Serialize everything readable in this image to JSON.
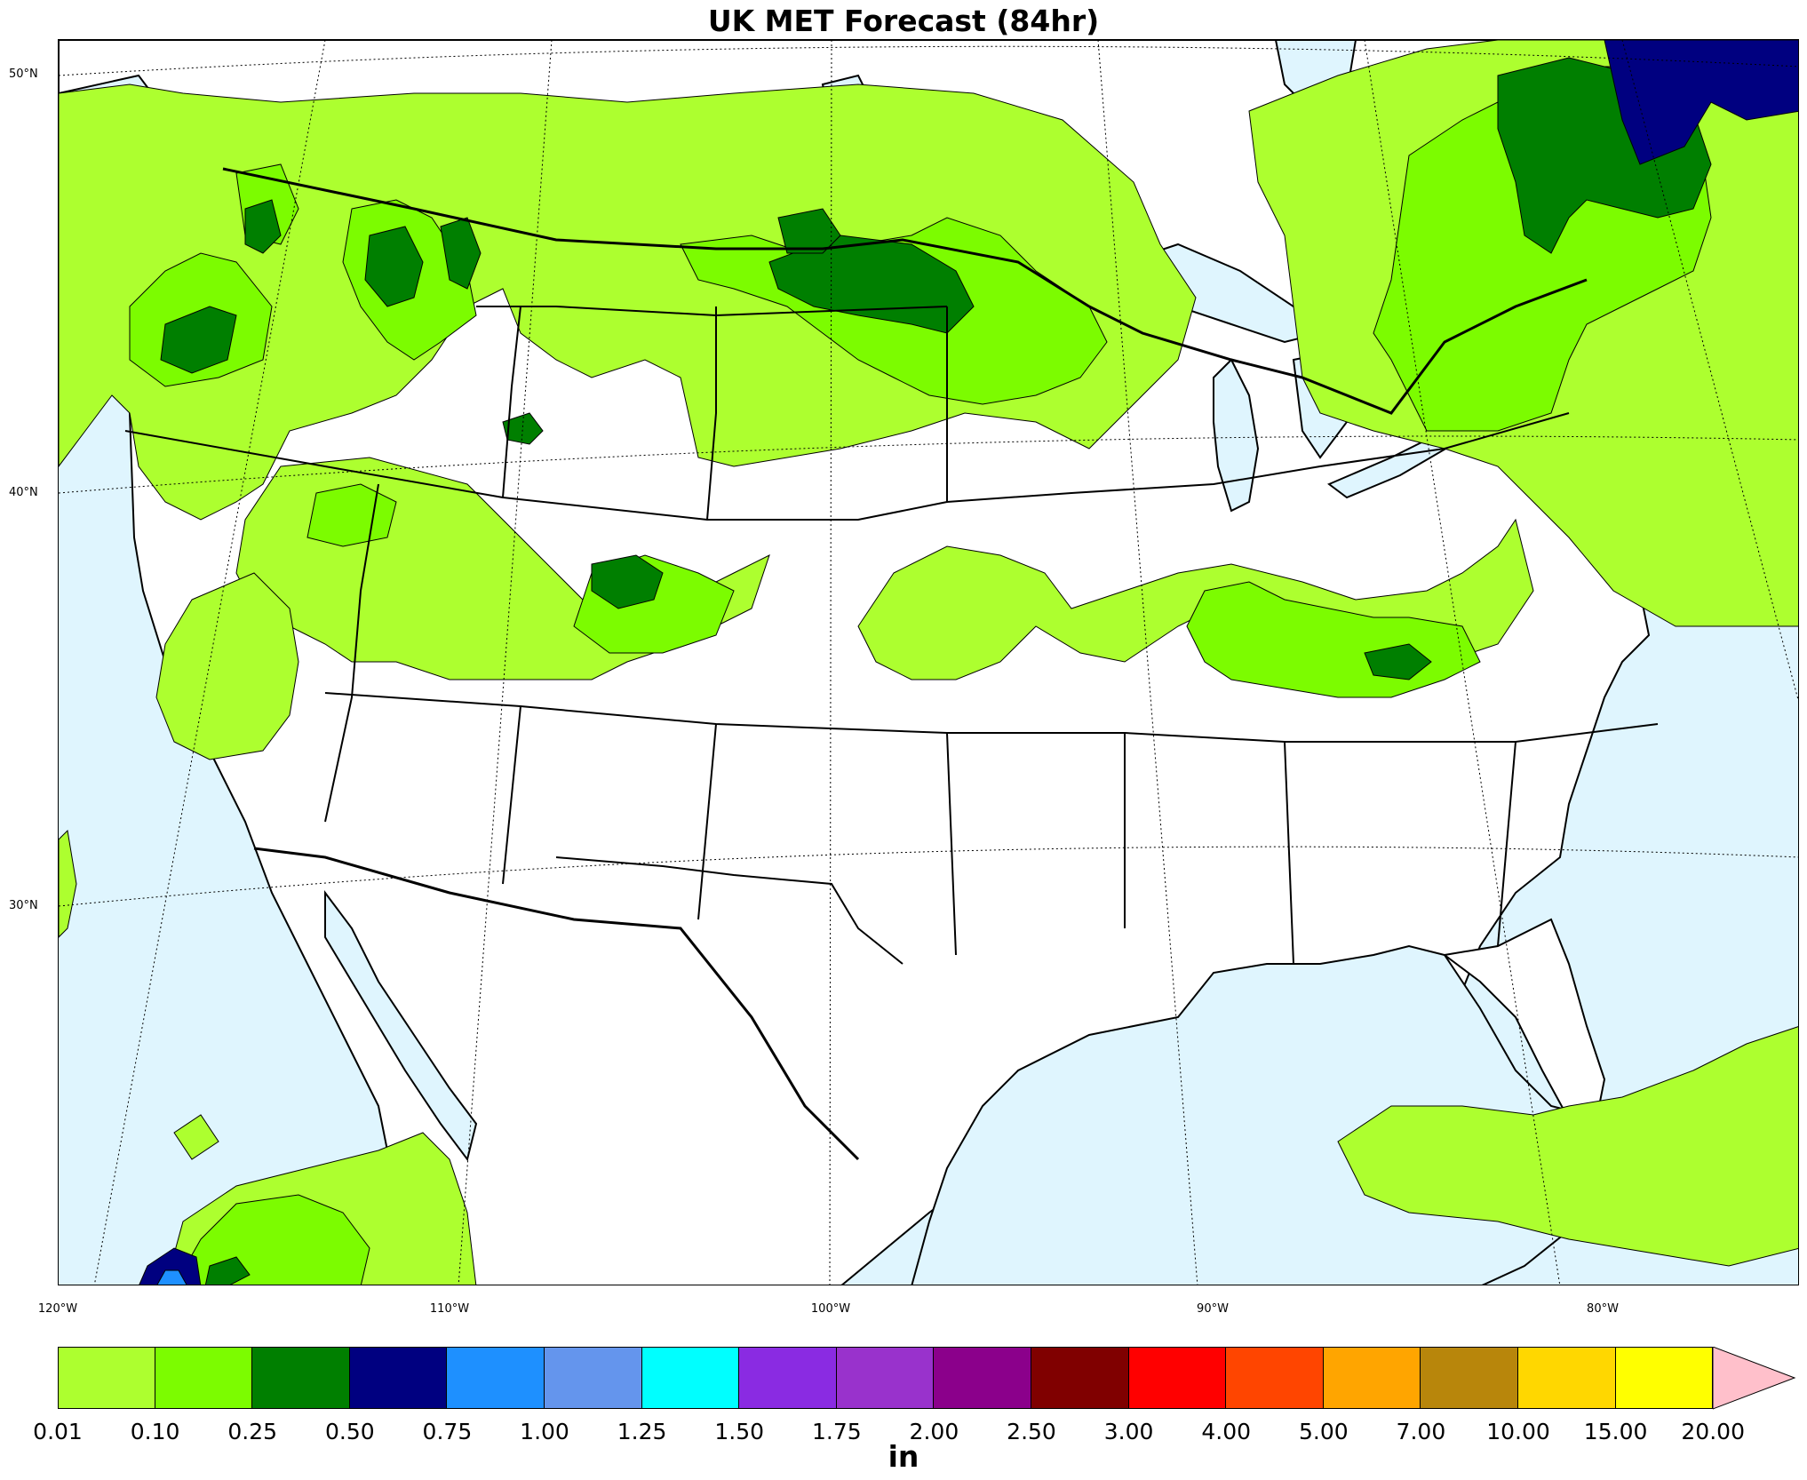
{
  "title": "UK MET Forecast (84hr)",
  "latitude_labels": [
    "50°N",
    "40°N",
    "30°N"
  ],
  "longitude_labels": [
    "120°W",
    "110°W",
    "100°W",
    "90°W",
    "80°W"
  ],
  "colorbar": {
    "unit": "in",
    "ticks": [
      "0.01",
      "0.10",
      "0.25",
      "0.50",
      "0.75",
      "1.00",
      "1.25",
      "1.50",
      "1.75",
      "2.00",
      "2.50",
      "3.00",
      "4.00",
      "5.00",
      "7.00",
      "10.00",
      "15.00",
      "20.00"
    ],
    "colors": [
      "#adff2f",
      "#7cfc00",
      "#007f00",
      "#000080",
      "#1e90ff",
      "#6495ed",
      "#00ffff",
      "#8a2be2",
      "#9932cc",
      "#8b008b",
      "#800000",
      "#ff0000",
      "#ff4500",
      "#ffa500",
      "#b8860b",
      "#ffd700",
      "#ffff00"
    ],
    "extend_color": "#ffc0cb"
  },
  "colors": {
    "water": "#dff5fe",
    "land": "#ffffff",
    "light_green": "#adff2f",
    "green": "#7cfc00",
    "dark_green": "#007f00",
    "navy": "#000080",
    "blue": "#1e90ff"
  }
}
